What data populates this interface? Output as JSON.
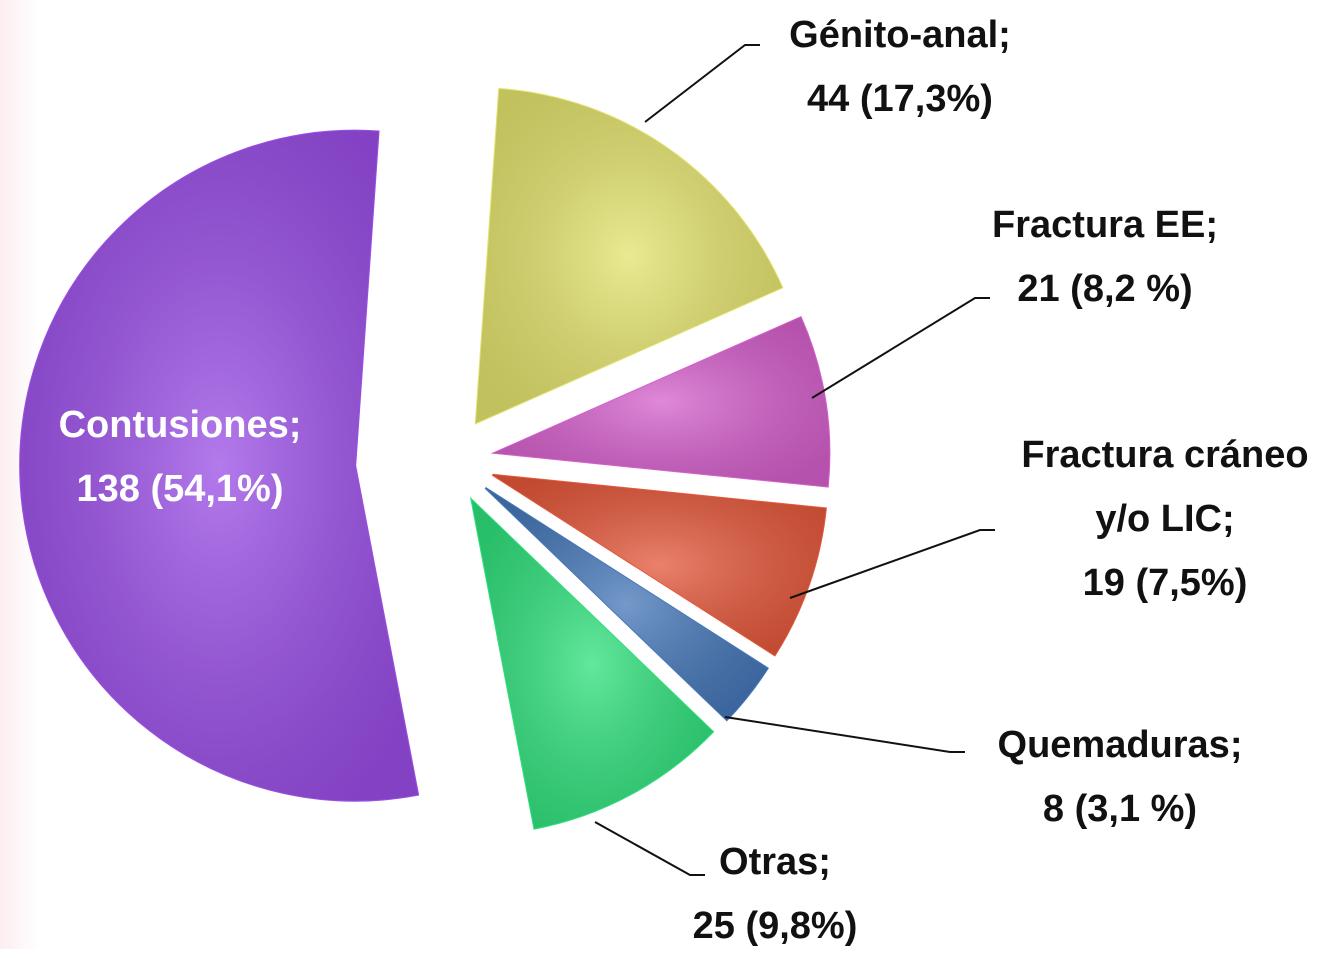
{
  "chart_data": {
    "type": "pie",
    "categories": [
      "Génito-anal;",
      "Fractura EE;",
      "Fractura cráneo y/o LIC;",
      "Quemaduras;",
      "Otras;",
      "Contusiones;"
    ],
    "values": [
      44,
      21,
      19,
      8,
      25,
      138
    ],
    "value_labels": [
      "44 (17,3%)",
      "21 (8,2 %)",
      "19 (7,5%)",
      "8 (3,1 %)",
      "25 (9,8%)",
      "138 (54,1%)"
    ],
    "colors": [
      "#e3e36e",
      "#d560cc",
      "#e4573a",
      "#4577b8",
      "#2fe07c",
      "#9a4ee6"
    ]
  }
}
